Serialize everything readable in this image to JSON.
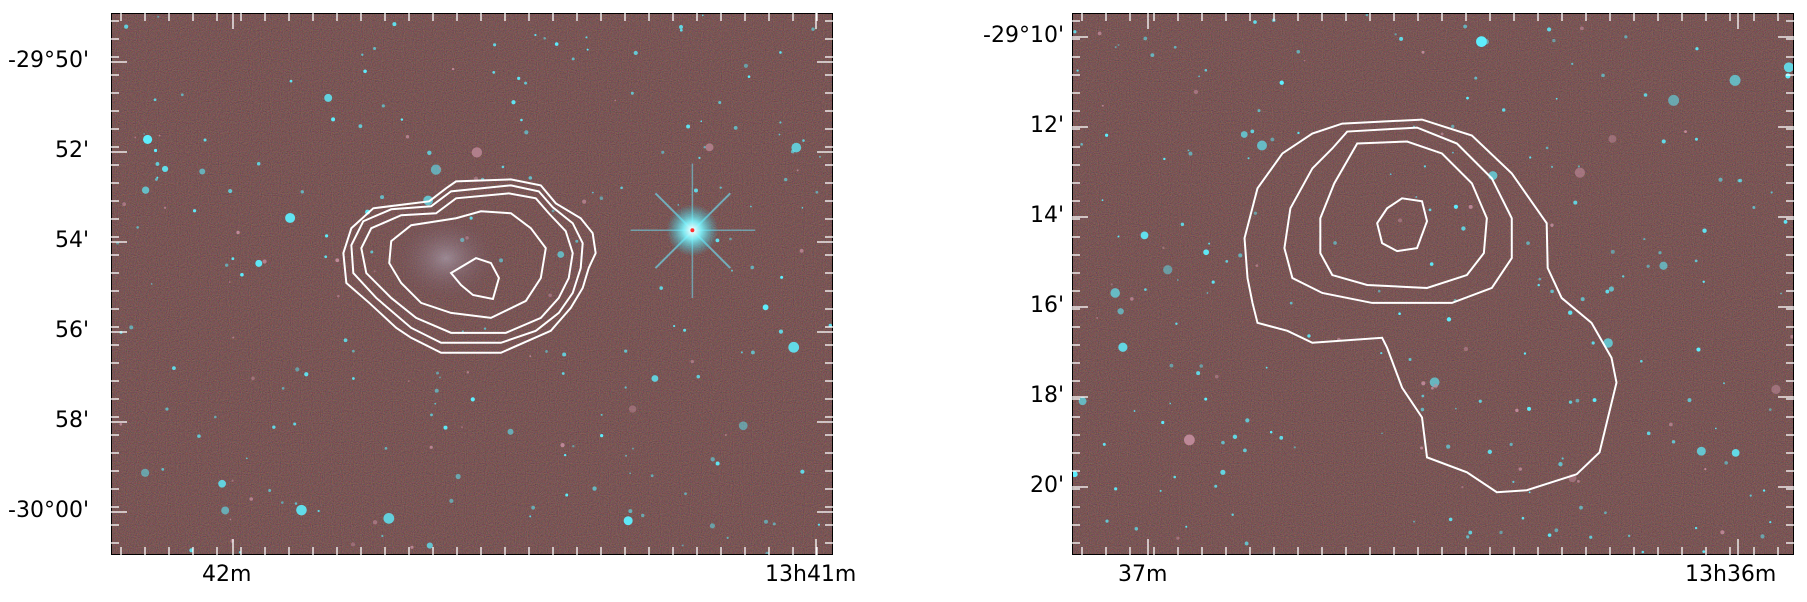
{
  "colors": {
    "sky": "#2a1512",
    "star": "#5ef0ff",
    "contour": "#ffffff",
    "frame": "#000000"
  },
  "left_panel": {
    "y_ticks": [
      "-29°50'",
      "52'",
      "54'",
      "56'",
      "58'",
      "-30°00'"
    ],
    "x_ticks": [
      "42m",
      "13h41m"
    ]
  },
  "right_panel": {
    "y_ticks": [
      "-29°10'",
      "12'",
      "14'",
      "16'",
      "18'",
      "20'"
    ],
    "x_ticks": [
      "37m",
      "13h36m"
    ]
  }
}
